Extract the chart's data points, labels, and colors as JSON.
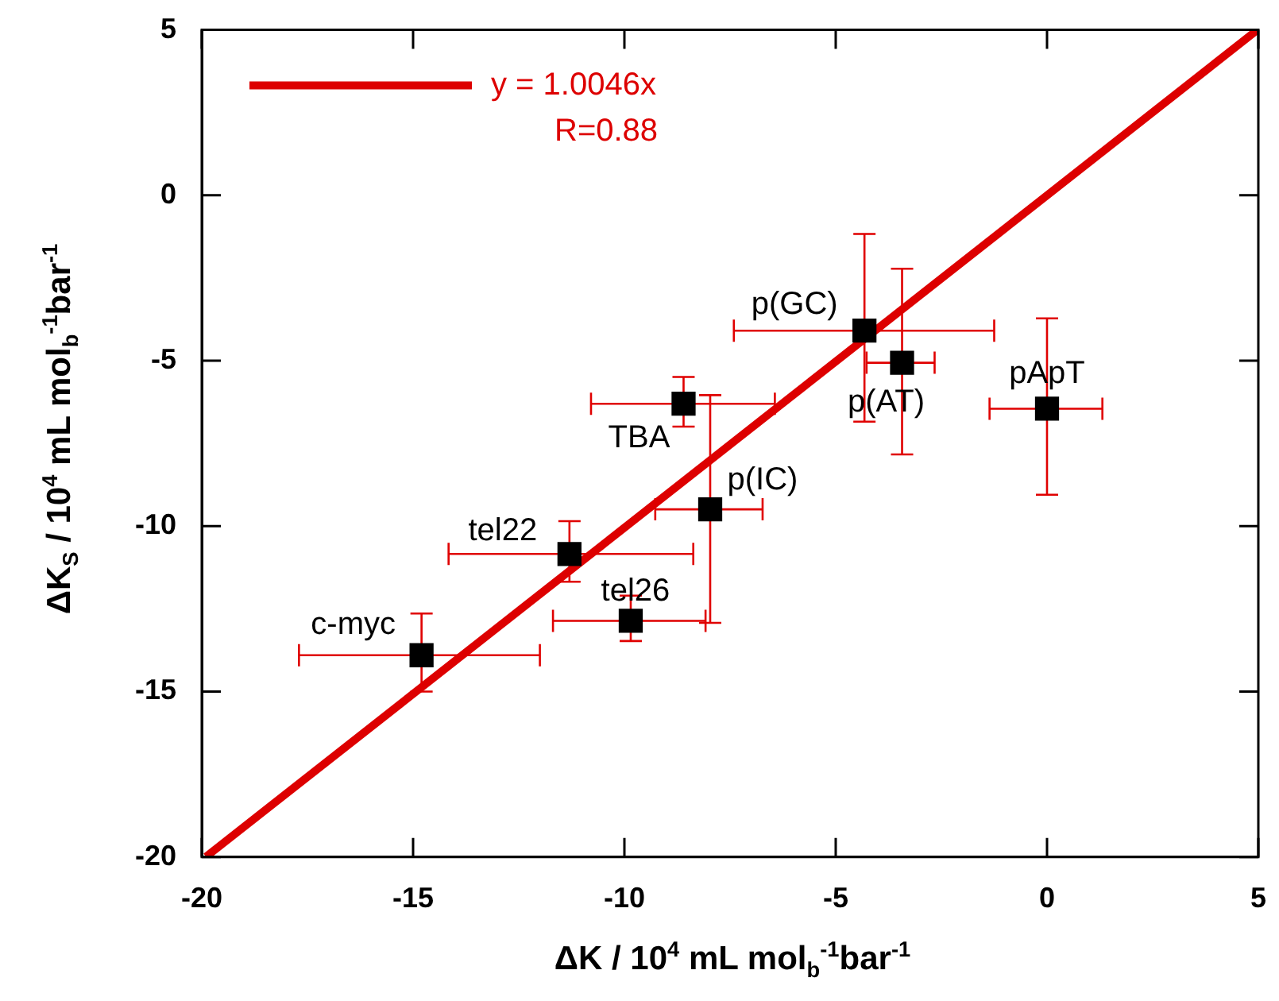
{
  "chart_data": {
    "type": "scatter",
    "xlabel": "ΔK / 10$^{4}$ mL mol$_{b}$$^{-1}$bar$^{-1}$",
    "ylabel": "ΔK$_{S}$ / 10$^{4}$ mL mol$_{b}$$^{-1}$bar$^{-1}$",
    "xlim": [
      -20,
      5
    ],
    "ylim": [
      -20,
      5
    ],
    "xticks": [
      -20,
      -15,
      -10,
      -5,
      0,
      5
    ],
    "yticks": [
      -20,
      -15,
      -10,
      -5,
      0,
      5
    ],
    "grid": false,
    "legend": "top left",
    "marker": "square",
    "series": [
      {
        "type": "scatter",
        "color": "#000000",
        "x": [
          -14.8,
          -11.3,
          -9.85,
          -8.6,
          -7.97,
          -4.32,
          -3.43,
          0.0
        ],
        "values": [
          -13.9,
          -10.84,
          -12.86,
          -6.3,
          -9.49,
          -4.09,
          -5.06,
          -6.45
        ],
        "errors": [
          [
            -15.0,
            -12.64
          ],
          [
            -11.68,
            -9.85
          ],
          [
            -13.47,
            -12.1
          ],
          [
            -6.99,
            -5.49
          ],
          [
            -12.92,
            -6.04
          ],
          [
            -6.84,
            -1.17
          ],
          [
            -7.83,
            -2.22
          ],
          [
            -9.05,
            -3.72
          ]
        ],
        "xerrors": [
          [
            -17.7,
            -12.0
          ],
          [
            -14.16,
            -8.37
          ],
          [
            -11.69,
            -8.08
          ],
          [
            -10.79,
            -6.44
          ],
          [
            -9.27,
            -6.73
          ],
          [
            -7.41,
            -1.25
          ],
          [
            -4.27,
            -2.66
          ],
          [
            -1.36,
            1.31
          ]
        ]
      },
      {
        "type": "line",
        "name": "y = 1.0046x",
        "color": "#dd0000",
        "marker": "none",
        "line_style": "solid",
        "x": [
          -19.9,
          4.97
        ],
        "values": [
          -19.99,
          4.99
        ]
      }
    ],
    "annotations": [
      "R=0.88",
      {
        "text": "c-myc",
        "x": -14.8,
        "y": -13.9
      },
      {
        "text": "tel22",
        "x": -11.3,
        "y": -10.84
      },
      {
        "text": "tel26",
        "x": -9.85,
        "y": -12.86
      },
      {
        "text": "TBA",
        "x": -8.6,
        "y": -6.3
      },
      {
        "text": "p(IC)",
        "x": -7.97,
        "y": -9.49
      },
      {
        "text": "p(GC)",
        "x": -4.32,
        "y": -4.09
      },
      {
        "text": "p(AT)",
        "x": -3.43,
        "y": -5.06
      },
      {
        "text": "pApT",
        "x": 0.0,
        "y": -6.45
      }
    ]
  }
}
